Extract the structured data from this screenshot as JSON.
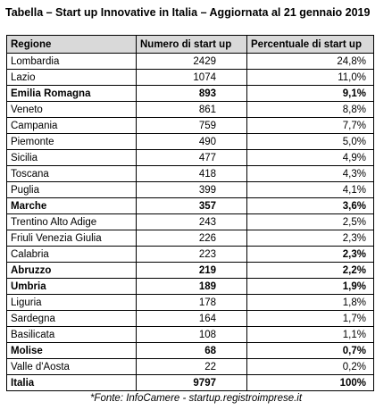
{
  "title": "Tabella – Start up Innovative in Italia – Aggiornata al 21 gennaio 2019",
  "table": {
    "header": [
      "Regione",
      "Numero di start up",
      "Percentuale di start up"
    ],
    "rows": [
      [
        "Lombardia",
        "2429",
        "24,8%"
      ],
      [
        "Lazio",
        "1074",
        "11,0%"
      ],
      [
        "Emilia Romagna",
        "893",
        "9,1%"
      ],
      [
        "Veneto",
        "861",
        "8,8%"
      ],
      [
        "Campania",
        "759",
        "7,7%"
      ],
      [
        "Piemonte",
        "490",
        "5,0%"
      ],
      [
        "Sicilia",
        "477",
        "4,9%"
      ],
      [
        "Toscana",
        "418",
        "4,3%"
      ],
      [
        "Puglia",
        "399",
        "4,1%"
      ],
      [
        "Marche",
        "357",
        "3,6%"
      ],
      [
        "Trentino Alto Adige",
        "243",
        "2,5%"
      ],
      [
        "Friuli Venezia Giulia",
        "226",
        "2,3%"
      ],
      [
        "Calabria",
        "223",
        "2,3%"
      ],
      [
        "Abruzzo",
        "219",
        "2,2%"
      ],
      [
        "Umbria",
        "189",
        "1,9%"
      ],
      [
        "Liguria",
        "178",
        "1,8%"
      ],
      [
        "Sardegna",
        "164",
        "1,7%"
      ],
      [
        "Basilicata",
        "108",
        "1,1%"
      ],
      [
        "Molise",
        "68",
        "0,7%"
      ],
      [
        "Valle d'Aosta",
        "22",
        "0,2%"
      ],
      [
        "Italia",
        "9797",
        "100%"
      ]
    ]
  },
  "footnote": "*Fonte: InfoCamere - startup.registroimprese.it"
}
